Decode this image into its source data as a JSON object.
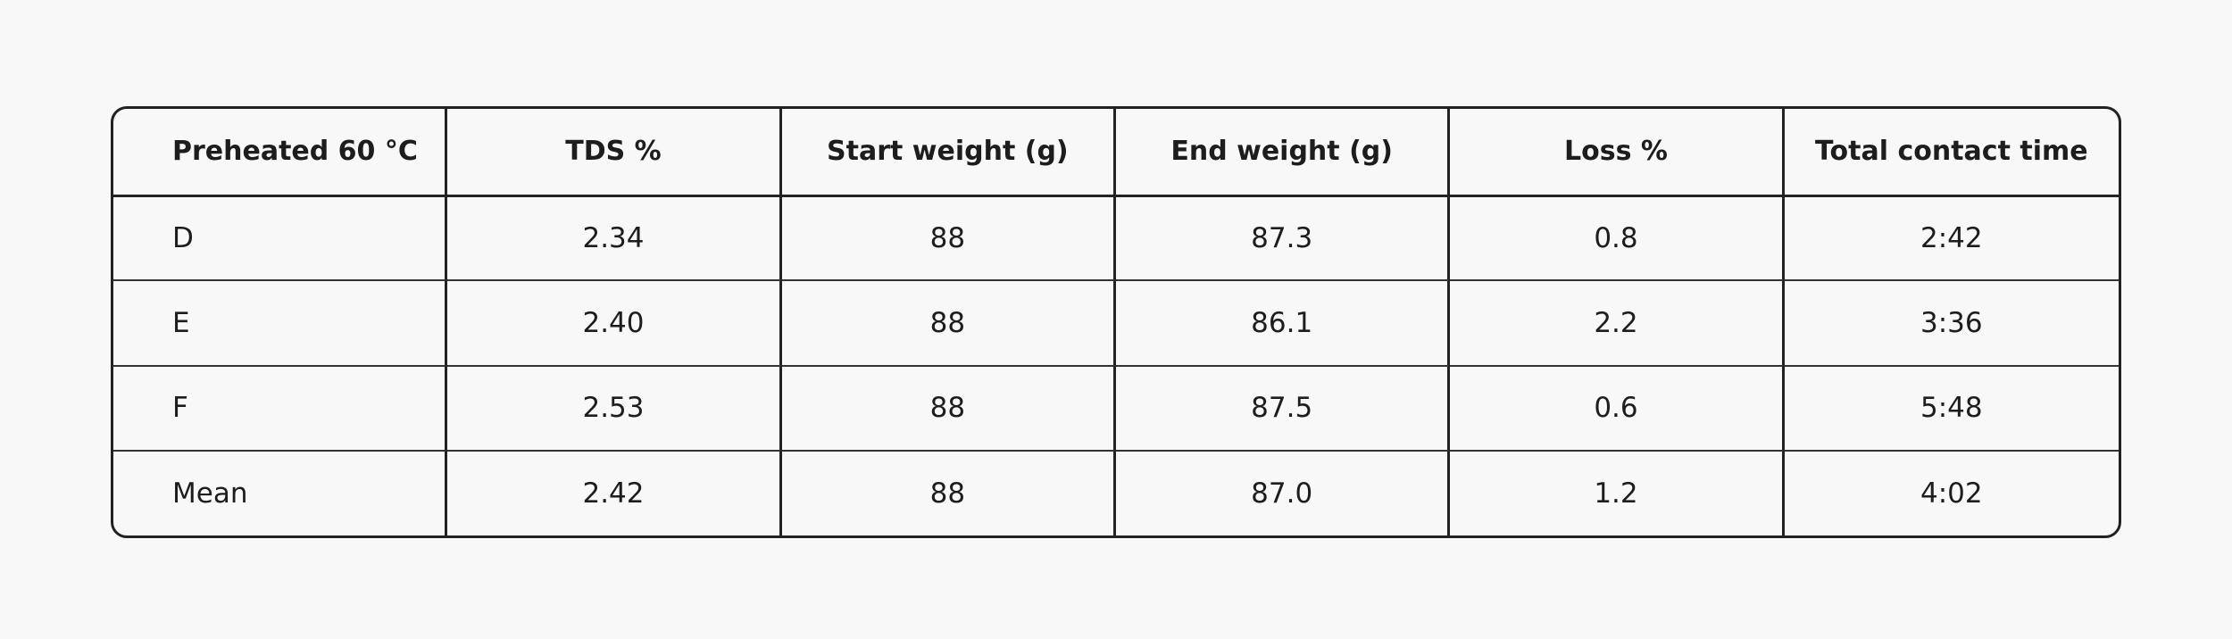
{
  "table": {
    "header": [
      "Preheated 60 °C",
      "TDS %",
      "Start weight (g)",
      "End weight (g)",
      "Loss %",
      "Total contact time"
    ],
    "rows": [
      [
        "D",
        "2.34",
        "88",
        "87.3",
        "0.8",
        "2:42"
      ],
      [
        "E",
        "2.40",
        "88",
        "86.1",
        "2.2",
        "3:36"
      ],
      [
        "F",
        "2.53",
        "88",
        "87.5",
        "0.6",
        "5:48"
      ],
      [
        "Mean",
        "2.42",
        "88",
        "87.0",
        "1.2",
        "4:02"
      ]
    ]
  }
}
